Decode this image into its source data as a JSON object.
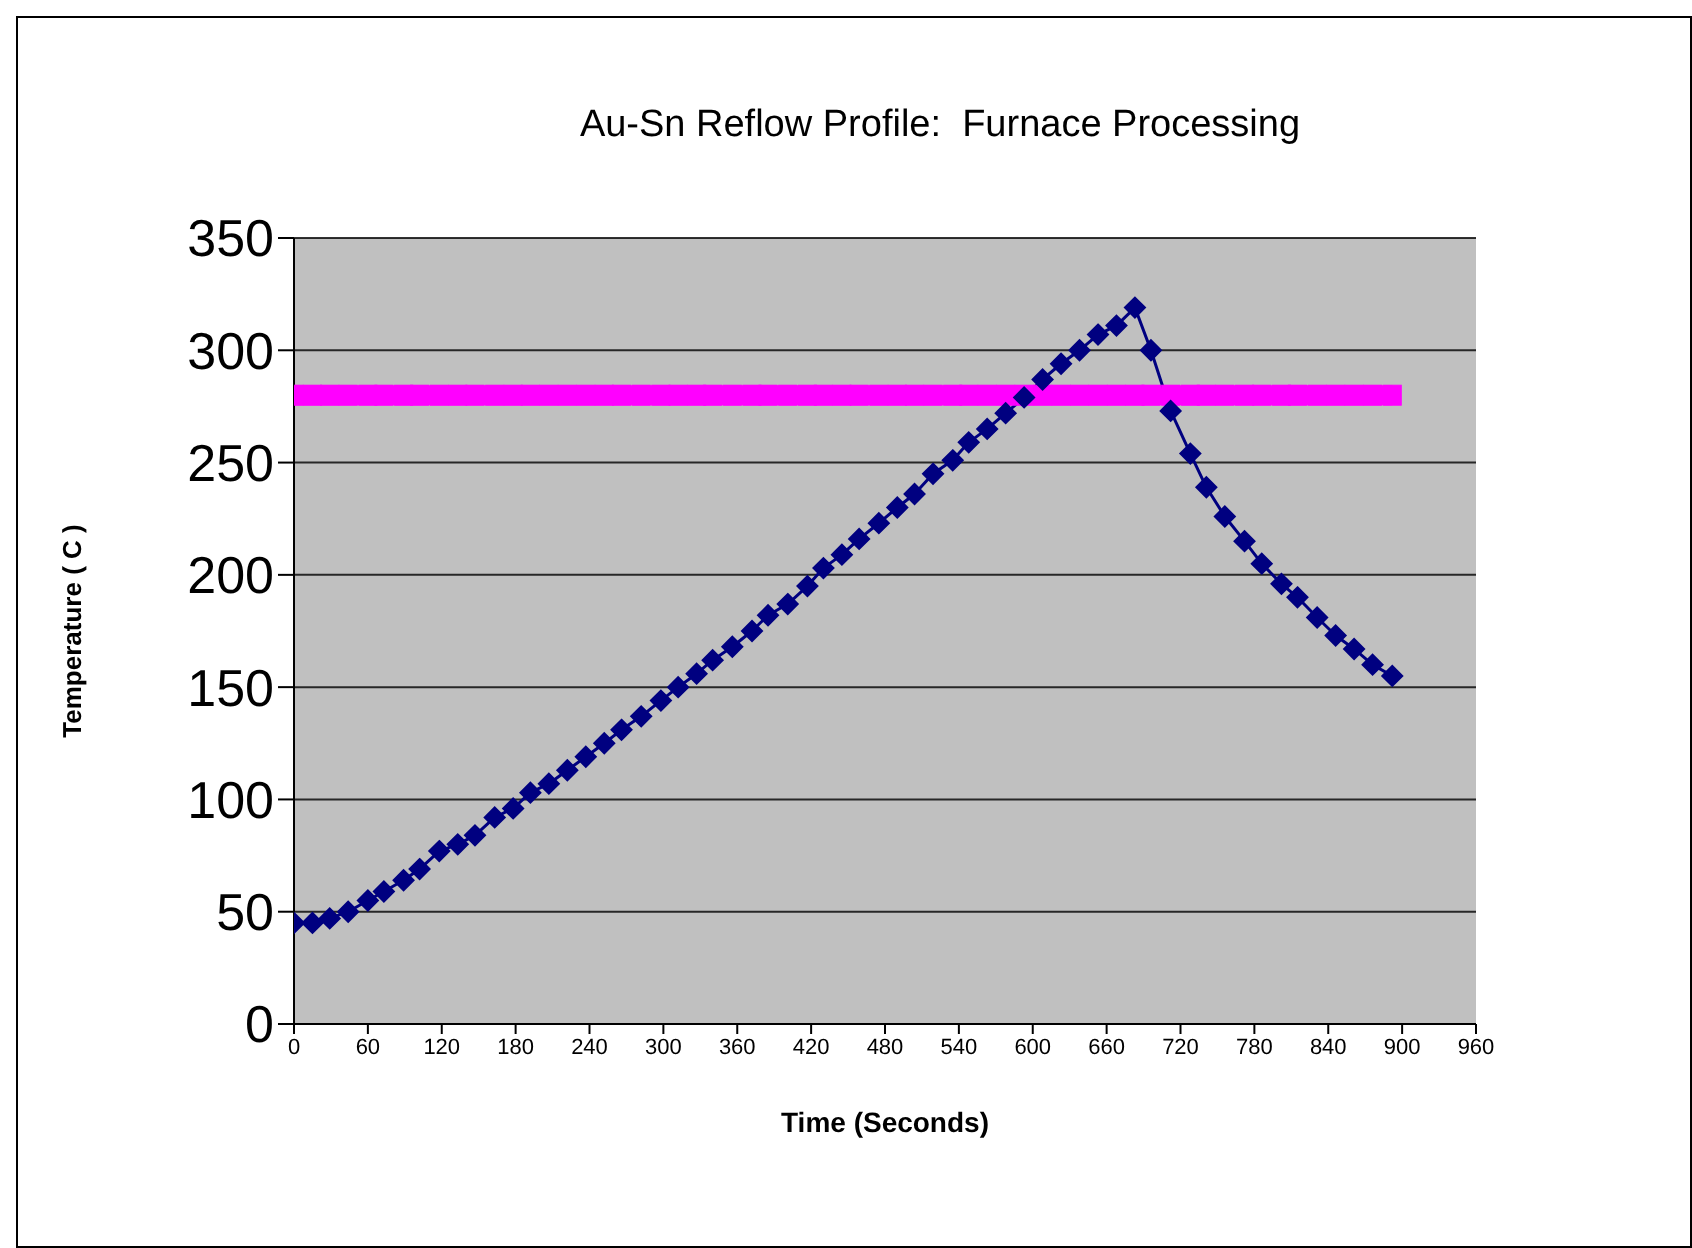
{
  "chart_data": {
    "type": "line",
    "title": "Au-Sn Reflow Profile:  Furnace Processing",
    "xlabel": "Time (Seconds)",
    "ylabel": "Temperature ( C )",
    "x": [
      0,
      15,
      29,
      44,
      60,
      73,
      89,
      102,
      118,
      133,
      147,
      163,
      178,
      192,
      207,
      222,
      237,
      252,
      266,
      282,
      298,
      312,
      327,
      340,
      356,
      372,
      385,
      401,
      417,
      430,
      445,
      459,
      475,
      490,
      504,
      519,
      535,
      548,
      563,
      578,
      593,
      608,
      623,
      638,
      653,
      668,
      683,
      696,
      712,
      728,
      741,
      756,
      772,
      786,
      802,
      815,
      831,
      846,
      861,
      876,
      892
    ],
    "series": [
      {
        "color": "#000080",
        "marker": "diamond",
        "values": [
          45,
          45,
          47,
          50,
          55,
          59,
          64,
          69,
          77,
          80,
          84,
          92,
          96,
          103,
          107,
          113,
          119,
          125,
          131,
          137,
          144,
          150,
          156,
          162,
          168,
          175,
          182,
          187,
          195,
          203,
          209,
          216,
          223,
          230,
          236,
          245,
          251,
          259,
          265,
          272,
          279,
          287,
          294,
          300,
          307,
          311,
          319,
          300,
          273,
          254,
          239,
          226,
          215,
          205,
          196,
          190,
          181,
          173,
          167,
          160,
          155
        ]
      },
      {
        "color": "#ff00ff",
        "marker": "square",
        "values": [
          280,
          280,
          280,
          280,
          280,
          280,
          280,
          280,
          280,
          280,
          280,
          280,
          280,
          280,
          280,
          280,
          280,
          280,
          280,
          280,
          280,
          280,
          280,
          280,
          280,
          280,
          280,
          280,
          280,
          280,
          280,
          280,
          280,
          280,
          280,
          280,
          280,
          280,
          280,
          280,
          280,
          280,
          280,
          280,
          280,
          280,
          280,
          280,
          280,
          280,
          280,
          280,
          280,
          280,
          280,
          280,
          280,
          280,
          280,
          280,
          280
        ]
      }
    ],
    "xlim": [
      0,
      960
    ],
    "xticks": [
      0,
      60,
      120,
      180,
      240,
      300,
      360,
      420,
      480,
      540,
      600,
      660,
      720,
      780,
      840,
      900,
      960
    ],
    "ylim": [
      0,
      350
    ],
    "yticks": [
      0,
      50,
      100,
      150,
      200,
      250,
      300,
      350
    ],
    "grid": "y"
  }
}
